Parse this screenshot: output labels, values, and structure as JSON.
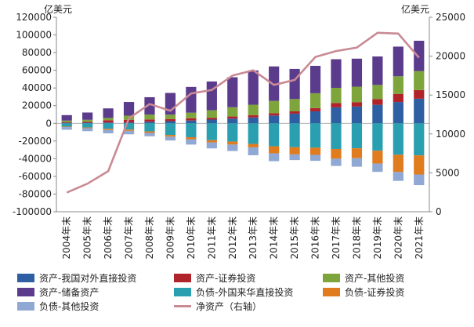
{
  "chart_data": {
    "type": "bar",
    "stacked": true,
    "categories": [
      "2004年末",
      "2005年末",
      "2006年末",
      "2007年末",
      "2008年末",
      "2009年末",
      "2010年末",
      "2011年末",
      "2012年末",
      "2013年末",
      "2014年末",
      "2015年末",
      "2016年末",
      "2017年末",
      "2018年末",
      "2019年末",
      "2020年末",
      "2021年末"
    ],
    "left_axis": {
      "unit": "亿美元",
      "ylim": [
        -100000,
        120000
      ],
      "ticks": [
        -100000,
        -80000,
        -60000,
        -40000,
        -20000,
        0,
        20000,
        40000,
        60000,
        80000,
        100000,
        120000
      ]
    },
    "right_axis": {
      "unit": "亿美元",
      "ylim": [
        0,
        25000
      ],
      "ticks": [
        0,
        5000,
        10000,
        15000,
        20000,
        25000
      ]
    },
    "series": [
      {
        "name": "资产-我国对外直接投资",
        "color": "#2e5fa3",
        "axis": "left",
        "values": [
          527,
          645,
          906,
          1160,
          1857,
          2458,
          3172,
          4248,
          5319,
          6605,
          8826,
          10959,
          13574,
          18090,
          18994,
          20945,
          24119,
          27851
        ]
      },
      {
        "name": "资产-证券投资",
        "color": "#b0232a",
        "axis": "left",
        "values": [
          920,
          1167,
          2652,
          2846,
          2525,
          2428,
          2571,
          2044,
          2406,
          2585,
          2625,
          2613,
          3670,
          4925,
          4980,
          6570,
          8999,
          9797
        ]
      },
      {
        "name": "资产-其他投资",
        "color": "#7ea53c",
        "axis": "left",
        "values": [
          1658,
          2164,
          2539,
          4683,
          5523,
          4952,
          6304,
          8495,
          10527,
          11867,
          13938,
          13889,
          16811,
          17141,
          17505,
          15899,
          20097,
          21500
        ]
      },
      {
        "name": "资产-储备资产",
        "color": "#5b3b8c",
        "axis": "left",
        "values": [
          6186,
          8257,
          10808,
          15473,
          19662,
          24532,
          29142,
          32558,
          33879,
          38804,
          38993,
          34061,
          30978,
          32359,
          31680,
          32229,
          33565,
          34269
        ]
      },
      {
        "name": "负债-外国来华直接投资",
        "color": "#2a9fb0",
        "axis": "left",
        "values": [
          -3690,
          -4715,
          -6144,
          -7037,
          -9155,
          -13148,
          -15696,
          -19069,
          -20680,
          -23312,
          -25991,
          -26963,
          -27551,
          -29014,
          -28271,
          -30977,
          -35503,
          -36263
        ]
      },
      {
        "name": "负债-证券投资",
        "color": "#e07b1e",
        "axis": "left",
        "values": [
          -566,
          -766,
          -1207,
          -1466,
          -1677,
          -1900,
          -2239,
          -2485,
          -3361,
          -3865,
          -7962,
          -8170,
          -8111,
          -10994,
          -11175,
          -14527,
          -19545,
          -21601
        ]
      },
      {
        "name": "负债-其他投资",
        "color": "#8fa8d4",
        "axis": "left",
        "values": [
          -2947,
          -3381,
          -3986,
          -3916,
          -3822,
          -4355,
          -6094,
          -6799,
          -7279,
          -8924,
          -8873,
          -6425,
          -6728,
          -8218,
          -9637,
          -9436,
          -10041,
          -12022
        ]
      },
      {
        "name": "净资产（右轴）",
        "color": "#c98a94",
        "axis": "right",
        "type": "line",
        "values": [
          2464,
          3611,
          5218,
          12000,
          13842,
          12976,
          15200,
          15651,
          17500,
          18179,
          16300,
          16941,
          19900,
          20650,
          21100,
          23000,
          22900,
          19800
        ]
      }
    ]
  }
}
